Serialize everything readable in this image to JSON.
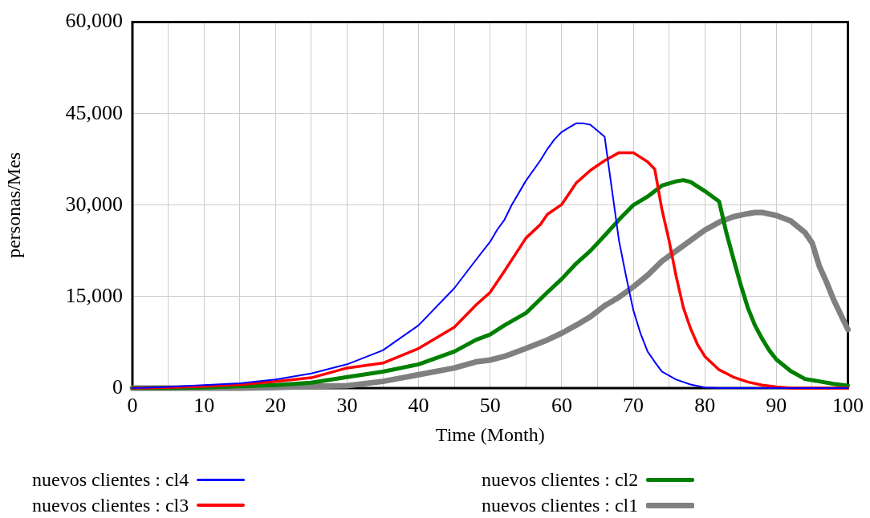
{
  "chart_data": {
    "type": "line",
    "xlabel": "Time (Month)",
    "ylabel": "personas/Mes",
    "xlim": [
      0,
      100
    ],
    "xticks": [
      0,
      {
        "value": 5,
        "label": null
      },
      10,
      {
        "value": 15,
        "label": null
      },
      20,
      {
        "value": 25,
        "label": null
      },
      30,
      {
        "value": 35,
        "label": null
      },
      40,
      {
        "value": 45,
        "label": null
      },
      50,
      {
        "value": 55,
        "label": null
      },
      60,
      {
        "value": 65,
        "label": null
      },
      70,
      {
        "value": 75,
        "label": null
      },
      80,
      {
        "value": 85,
        "label": null
      },
      90,
      {
        "value": 95,
        "label": null
      },
      100
    ],
    "ylim": [
      0,
      60000
    ],
    "yticks": [
      {
        "value": 0,
        "label": "0"
      },
      {
        "value": 15000,
        "label": "15,000"
      },
      {
        "value": 30000,
        "label": "30,000"
      },
      {
        "value": 45000,
        "label": "45,000"
      },
      {
        "value": 60000,
        "label": "60,000"
      }
    ],
    "grid": true,
    "legend": "bottom",
    "marker": "none",
    "line_style": "solid",
    "series": [
      {
        "name": "nuevos clientes : cl4",
        "color": "#0000ff",
        "x": [
          0,
          5,
          10,
          15,
          20,
          25,
          30,
          35,
          40,
          45,
          48,
          50,
          51,
          52,
          53,
          55,
          57,
          58,
          59,
          60,
          61,
          62,
          63,
          64,
          65,
          66,
          67,
          68,
          69,
          70,
          71,
          72,
          73,
          74,
          76,
          78,
          80,
          82,
          90,
          100
        ],
        "values": [
          0,
          200,
          500,
          800,
          1400,
          2400,
          3900,
          6200,
          10300,
          16400,
          21000,
          24000,
          26000,
          27600,
          30000,
          34000,
          37300,
          39200,
          40800,
          42000,
          42700,
          43400,
          43400,
          43200,
          42200,
          41200,
          32700,
          24200,
          18300,
          12800,
          9000,
          6000,
          4300,
          2700,
          1400,
          600,
          100,
          0,
          0,
          0
        ]
      },
      {
        "name": "nuevos clientes : cl3",
        "color": "#ff0000",
        "x": [
          0,
          5,
          10,
          15,
          20,
          25,
          30,
          35,
          40,
          45,
          48,
          50,
          52,
          55,
          57,
          58,
          60,
          62,
          64,
          66,
          68,
          70,
          72,
          73,
          74,
          75,
          76,
          77,
          78,
          79,
          80,
          82,
          84,
          86,
          88,
          90,
          92,
          100
        ],
        "values": [
          0,
          100,
          300,
          600,
          1100,
          1700,
          3300,
          4100,
          6500,
          10000,
          13600,
          15700,
          19200,
          24600,
          26800,
          28500,
          30100,
          33600,
          35700,
          37300,
          38600,
          38600,
          37100,
          35900,
          29300,
          24200,
          18300,
          13200,
          9800,
          7100,
          5200,
          3000,
          1800,
          1000,
          500,
          200,
          0,
          0
        ]
      },
      {
        "name": "nuevos clientes : cl2",
        "color": "#008000",
        "x": [
          0,
          5,
          10,
          15,
          20,
          25,
          30,
          35,
          40,
          45,
          48,
          50,
          52,
          55,
          58,
          60,
          62,
          64,
          66,
          68,
          70,
          72,
          74,
          76,
          77,
          78,
          80,
          82,
          83,
          84,
          85,
          86,
          87,
          88,
          89,
          90,
          92,
          94,
          96,
          98,
          100
        ],
        "values": [
          0,
          0,
          100,
          300,
          500,
          900,
          1800,
          2700,
          3900,
          6000,
          7900,
          8800,
          10300,
          12300,
          15700,
          17900,
          20400,
          22500,
          25000,
          27600,
          30000,
          31400,
          33200,
          33900,
          34100,
          33800,
          32300,
          30600,
          25500,
          21200,
          17000,
          13200,
          10300,
          8100,
          6200,
          4700,
          2800,
          1500,
          1100,
          700,
          400
        ]
      },
      {
        "name": "nuevos clientes : cl1",
        "color": "#808080",
        "x": [
          0,
          5,
          10,
          15,
          20,
          25,
          30,
          35,
          40,
          45,
          48,
          50,
          52,
          55,
          58,
          60,
          62,
          64,
          66,
          68,
          70,
          72,
          74,
          76,
          78,
          80,
          82,
          84,
          86,
          87,
          88,
          90,
          92,
          94,
          95,
          96,
          97,
          98,
          100
        ],
        "values": [
          0,
          0,
          0,
          0,
          100,
          300,
          400,
          1100,
          2200,
          3300,
          4300,
          4600,
          5200,
          6500,
          7900,
          9000,
          10300,
          11700,
          13500,
          14900,
          16600,
          18500,
          20800,
          22500,
          24200,
          25900,
          27200,
          28100,
          28600,
          28800,
          28800,
          28300,
          27400,
          25500,
          23800,
          20000,
          17400,
          14500,
          9600
        ]
      }
    ]
  }
}
